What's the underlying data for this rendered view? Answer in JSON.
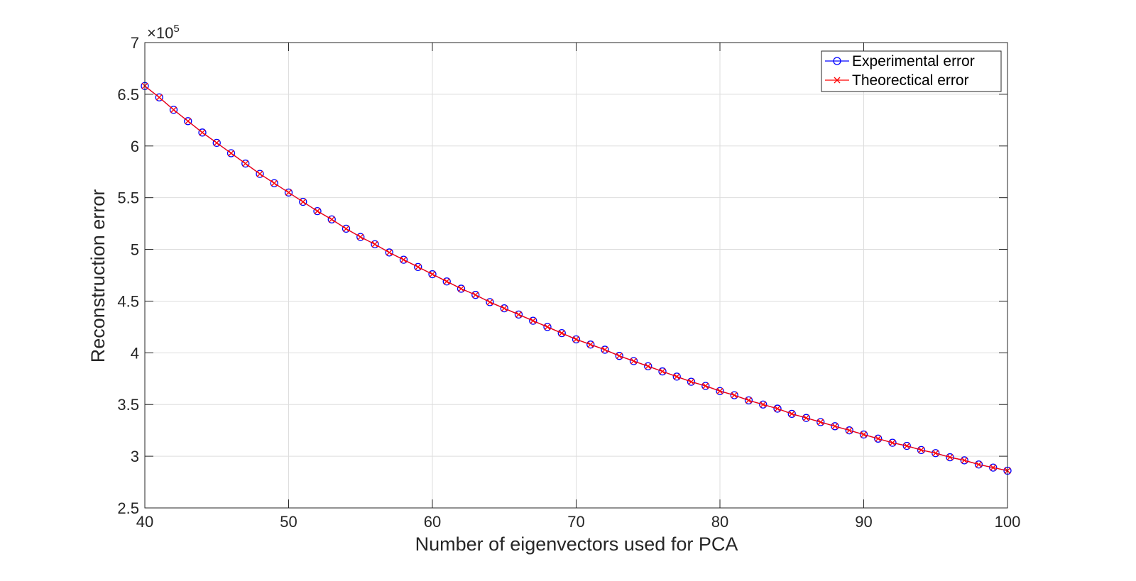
{
  "chart_data": {
    "type": "line",
    "xlabel": "Number of eigenvectors used for PCA",
    "ylabel": "Reconstruction error",
    "y_exponent_base": "×10",
    "y_exponent_power": "5",
    "xlim": [
      40,
      100
    ],
    "ylim": [
      2.5,
      7
    ],
    "x_ticks": [
      40,
      50,
      60,
      70,
      80,
      90,
      100
    ],
    "x_tick_labels": [
      "40",
      "50",
      "60",
      "70",
      "80",
      "90",
      "100"
    ],
    "y_ticks": [
      2.5,
      3,
      3.5,
      4,
      4.5,
      5,
      5.5,
      6,
      6.5,
      7
    ],
    "y_tick_labels": [
      "2.5",
      "3",
      "3.5",
      "4",
      "4.5",
      "5",
      "5.5",
      "6",
      "6.5",
      "7"
    ],
    "grid": true,
    "legend_position": "top-right",
    "x": [
      40,
      41,
      42,
      43,
      44,
      45,
      46,
      47,
      48,
      49,
      50,
      51,
      52,
      53,
      54,
      55,
      56,
      57,
      58,
      59,
      60,
      61,
      62,
      63,
      64,
      65,
      66,
      67,
      68,
      69,
      70,
      71,
      72,
      73,
      74,
      75,
      76,
      77,
      78,
      79,
      80,
      81,
      82,
      83,
      84,
      85,
      86,
      87,
      88,
      89,
      90,
      91,
      92,
      93,
      94,
      95,
      96,
      97,
      98,
      99,
      100
    ],
    "series": [
      {
        "name": "Experimental error",
        "color": "#0000ff",
        "marker": "circle",
        "values": [
          6.58,
          6.47,
          6.35,
          6.24,
          6.13,
          6.03,
          5.93,
          5.83,
          5.73,
          5.64,
          5.55,
          5.46,
          5.37,
          5.29,
          5.2,
          5.12,
          5.05,
          4.97,
          4.9,
          4.83,
          4.76,
          4.69,
          4.62,
          4.56,
          4.49,
          4.43,
          4.37,
          4.31,
          4.25,
          4.19,
          4.13,
          4.08,
          4.03,
          3.97,
          3.92,
          3.87,
          3.82,
          3.77,
          3.72,
          3.68,
          3.63,
          3.59,
          3.54,
          3.5,
          3.46,
          3.41,
          3.37,
          3.33,
          3.29,
          3.25,
          3.21,
          3.17,
          3.13,
          3.1,
          3.06,
          3.03,
          2.99,
          2.96,
          2.92,
          2.89,
          2.86
        ]
      },
      {
        "name": "Theorectical error",
        "color": "#ff0000",
        "marker": "x",
        "values": [
          6.58,
          6.47,
          6.35,
          6.24,
          6.13,
          6.03,
          5.93,
          5.83,
          5.73,
          5.64,
          5.55,
          5.46,
          5.37,
          5.29,
          5.2,
          5.12,
          5.05,
          4.97,
          4.9,
          4.83,
          4.76,
          4.69,
          4.62,
          4.56,
          4.49,
          4.43,
          4.37,
          4.31,
          4.25,
          4.19,
          4.13,
          4.08,
          4.03,
          3.97,
          3.92,
          3.87,
          3.82,
          3.77,
          3.72,
          3.68,
          3.63,
          3.59,
          3.54,
          3.5,
          3.46,
          3.41,
          3.37,
          3.33,
          3.29,
          3.25,
          3.21,
          3.17,
          3.13,
          3.1,
          3.06,
          3.03,
          2.99,
          2.96,
          2.92,
          2.89,
          2.86
        ]
      }
    ]
  }
}
